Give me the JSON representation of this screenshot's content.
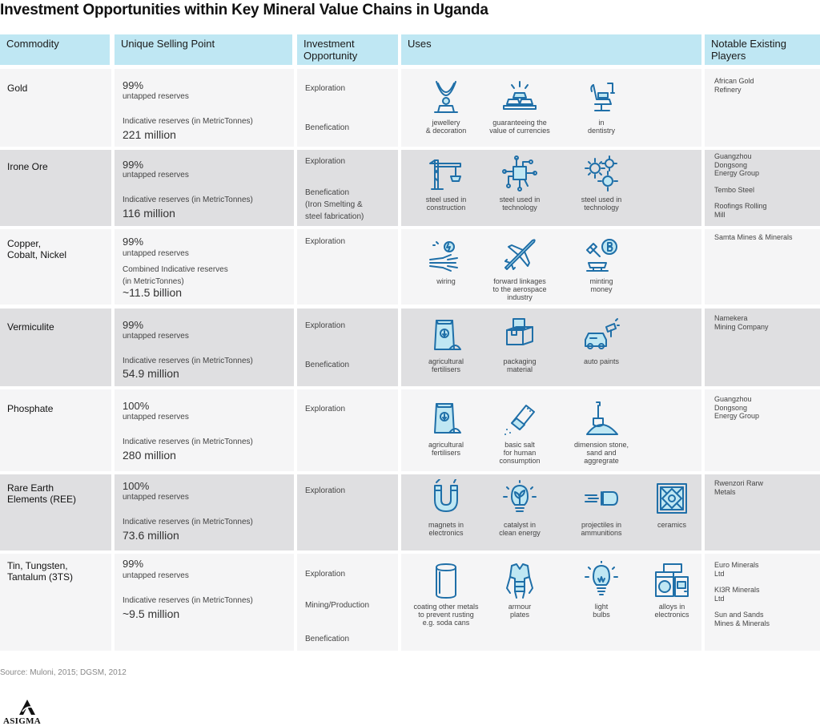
{
  "title": "Investment Opportunities within Key Mineral Value Chains in Uganda",
  "headers": {
    "commodity": "Commodity",
    "usp": "Unique Selling Point",
    "opportunity": "Investment Opportunity",
    "uses": "Uses",
    "players": "Notable Existing Players"
  },
  "rows": [
    {
      "commodity": "Gold",
      "pct": "99%",
      "untapped": "untapped reserves",
      "indicative": "Indicative reserves (in MetricTonnes)",
      "amount": "221 million",
      "opportunities": [
        "Exploration",
        "Benefication"
      ],
      "uses": [
        {
          "icon": "necklace-icon",
          "label": "jewellery\n& decoration"
        },
        {
          "icon": "gold-bars-icon",
          "label": "guaranteeing the\nvalue of currencies"
        },
        {
          "icon": "dental-chair-icon",
          "label": "in\ndentistry"
        }
      ],
      "players": [
        "African Gold\nRefinery"
      ]
    },
    {
      "commodity": "Irone Ore",
      "pct": "99%",
      "untapped": "untapped reserves",
      "indicative": "Indicative reserves (in MetricTonnes)",
      "amount": "116 million",
      "opportunities": [
        "Exploration",
        "Benefication\n(Iron Smelting &\nsteel fabrication)"
      ],
      "uses": [
        {
          "icon": "crane-icon",
          "label": "steel used in\nconstruction"
        },
        {
          "icon": "circuit-chip-icon",
          "label": "steel used in\ntechnology"
        },
        {
          "icon": "gears-icon",
          "label": "steel used in\ntechnology"
        }
      ],
      "players": [
        "Guangzhou\nDongsong\nEnergy Group",
        "Tembo Steel",
        "Roofings Rolling\nMill"
      ]
    },
    {
      "commodity": "Copper,\nCobalt, Nickel",
      "pct": "99%",
      "untapped": "untapped reserves",
      "indicative": "Combined Indicative reserves\n(in MetricTonnes)",
      "amount": "~11.5 billion",
      "opportunities": [
        "Exploration"
      ],
      "uses": [
        {
          "icon": "wiring-icon",
          "label": "wiring"
        },
        {
          "icon": "airplane-icon",
          "label": "forward linkages\nto the aerospace\nindustry"
        },
        {
          "icon": "minting-coin-icon",
          "label": "minting\nmoney"
        }
      ],
      "players": [
        "Samta Mines & Minerals"
      ]
    },
    {
      "commodity": "Vermiculite",
      "pct": "99%",
      "untapped": "untapped reserves",
      "indicative": "Indicative reserves (in MetricTonnes)",
      "amount": "54.9 million",
      "opportunities": [
        "Exploration",
        "Benefication"
      ],
      "uses": [
        {
          "icon": "fertiliser-bag-icon",
          "label": "agricultural\nfertilisers"
        },
        {
          "icon": "boxes-icon",
          "label": "packaging\nmaterial"
        },
        {
          "icon": "spray-paint-car-icon",
          "label": "auto paints"
        }
      ],
      "players": [
        "Namekera\nMining Company"
      ]
    },
    {
      "commodity": "Phosphate",
      "pct": "100%",
      "untapped": "untapped reserves",
      "indicative": "Indicative reserves (in MetricTonnes)",
      "amount": "280 million",
      "opportunities": [
        "Exploration"
      ],
      "uses": [
        {
          "icon": "fertiliser-bag-icon",
          "label": "agricultural\nfertilisers"
        },
        {
          "icon": "salt-shaker-icon",
          "label": "basic salt\nfor human\nconsumption"
        },
        {
          "icon": "shovel-sand-icon",
          "label": "dimension stone,\nsand and\naggregrate"
        }
      ],
      "players": [
        "Guangzhou\nDongsong\nEnergy Group"
      ]
    },
    {
      "commodity": "Rare Earth\nElements (REE)",
      "pct": "100%",
      "untapped": "untapped reserves",
      "indicative": "Indicative reserves (in MetricTonnes)",
      "amount": "73.6 million",
      "opportunities": [
        "Exploration"
      ],
      "uses": [
        {
          "icon": "magnet-icon",
          "label": "magnets in\nelectronics"
        },
        {
          "icon": "lightbulb-plant-icon",
          "label": "catalyst in\nclean energy"
        },
        {
          "icon": "projectile-icon",
          "label": "projectiles in\nammunitions"
        },
        {
          "icon": "ceramic-tile-icon",
          "label": "ceramics"
        }
      ],
      "players": [
        "Rwenzori Rarw\nMetals"
      ]
    },
    {
      "commodity": "Tin, Tungsten,\nTantalum (3TS)",
      "pct": "99%",
      "untapped": "untapped reserves",
      "indicative": "Indicative reserves (in MetricTonnes)",
      "amount": "~9.5 million",
      "opportunities": [
        "Exploration",
        "Mining/Production",
        "Benefication"
      ],
      "uses": [
        {
          "icon": "soda-can-icon",
          "label": "coating other metals\nto prevent rusting\ne.g. soda cans"
        },
        {
          "icon": "armour-icon",
          "label": "armour\nplates"
        },
        {
          "icon": "lightbulb-icon",
          "label": "light\nbulbs"
        },
        {
          "icon": "appliances-icon",
          "label": "alloys in\nelectronics"
        }
      ],
      "players": [
        "Euro Minerals\nLtd",
        "KI3R Minerals\nLtd",
        "Sun and Sands\nMines & Minerals"
      ]
    }
  ],
  "source": "Source: Muloni, 2015; DGSM, 2012",
  "logo_text": "ASIGMA"
}
